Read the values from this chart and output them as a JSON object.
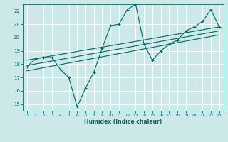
{
  "xlabel": "Humidex (Indice chaleur)",
  "bg_color": "#cce8e8",
  "grid_color": "#ffffff",
  "line_color": "#006666",
  "xlim": [
    -0.5,
    23.5
  ],
  "ylim": [
    14.5,
    22.5
  ],
  "xticks": [
    0,
    1,
    2,
    3,
    4,
    5,
    6,
    7,
    8,
    9,
    10,
    11,
    12,
    13,
    14,
    15,
    16,
    17,
    18,
    19,
    20,
    21,
    22,
    23
  ],
  "yticks": [
    15,
    16,
    17,
    18,
    19,
    20,
    21,
    22
  ],
  "data_x": [
    0,
    1,
    2,
    3,
    4,
    5,
    6,
    7,
    8,
    9,
    10,
    11,
    12,
    13,
    14,
    15,
    16,
    17,
    18,
    19,
    20,
    21,
    22,
    23
  ],
  "data_y": [
    17.8,
    18.4,
    18.5,
    18.5,
    17.6,
    17.0,
    14.8,
    16.2,
    17.4,
    19.2,
    20.9,
    21.0,
    22.1,
    22.5,
    19.5,
    18.3,
    19.0,
    19.5,
    19.8,
    20.5,
    20.8,
    21.2,
    22.1,
    20.8
  ],
  "line1_x": [
    0,
    23
  ],
  "line1_y": [
    17.5,
    20.2
  ],
  "line2_x": [
    0,
    23
  ],
  "line2_y": [
    17.9,
    20.5
  ],
  "line3_x": [
    0,
    23
  ],
  "line3_y": [
    18.3,
    20.8
  ]
}
